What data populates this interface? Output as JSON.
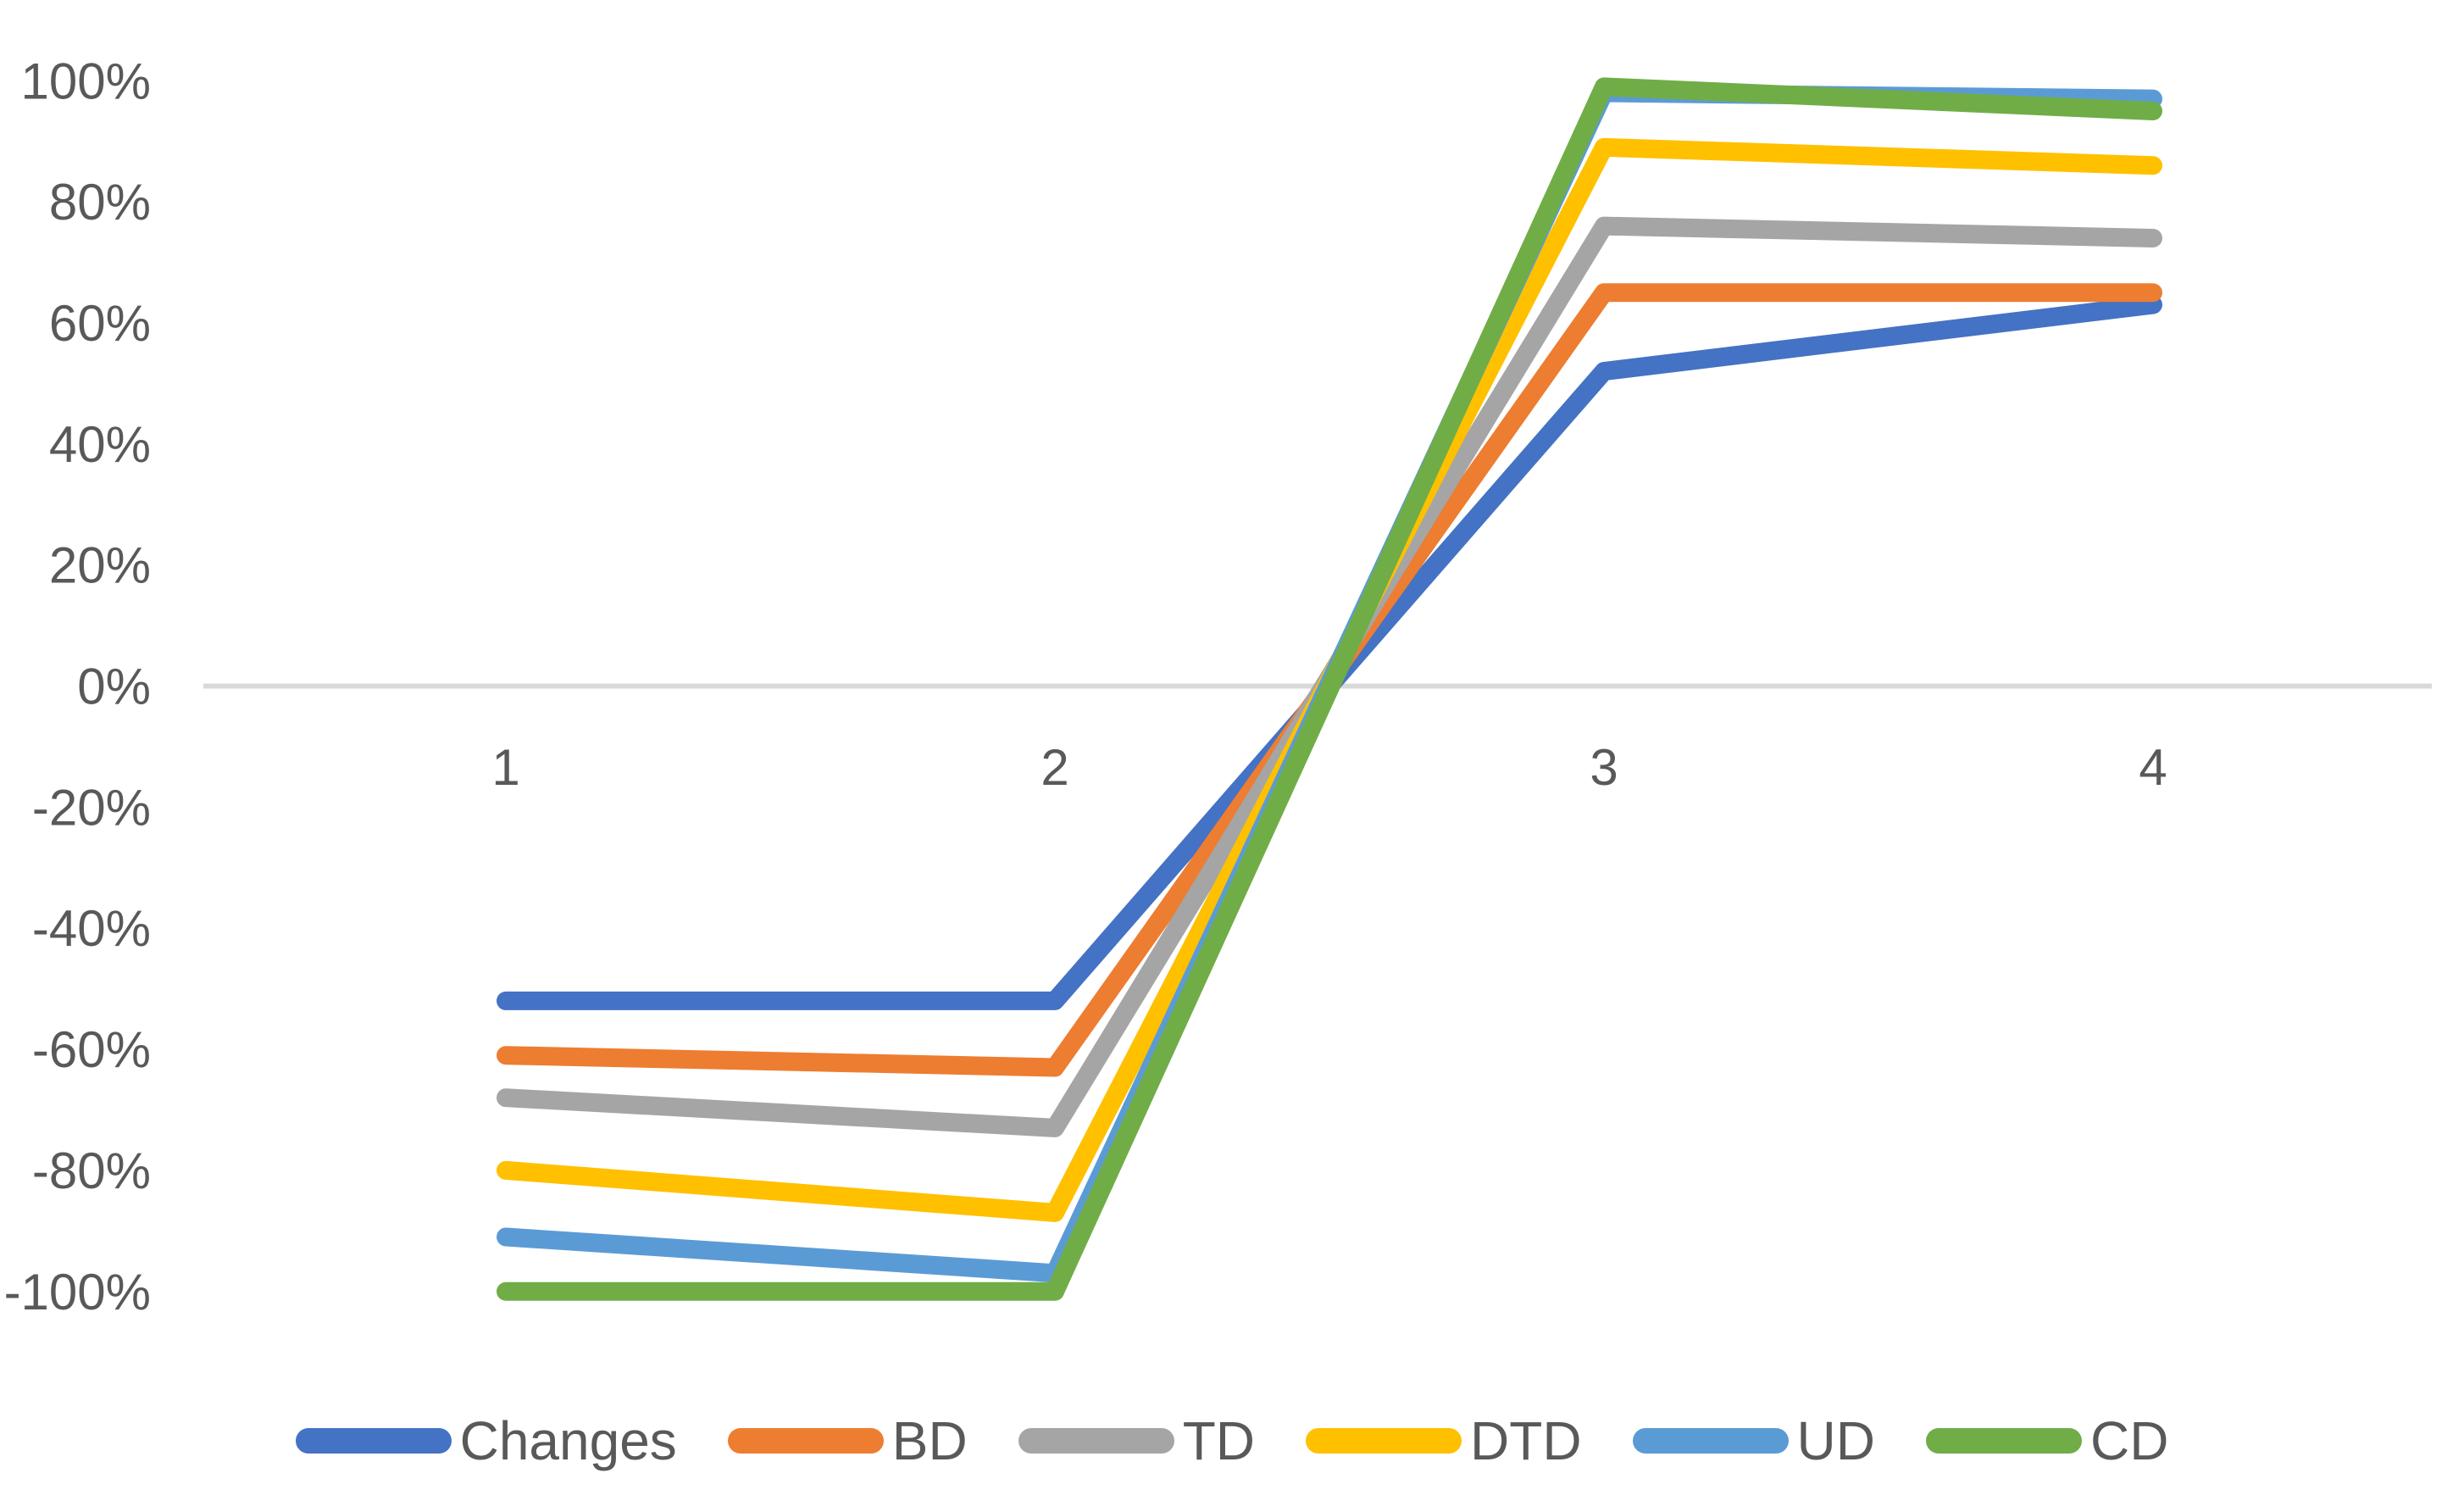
{
  "chart_data": {
    "type": "line",
    "title": "",
    "xlabel": "",
    "ylabel": "",
    "categories": [
      "1",
      "2",
      "3",
      "4"
    ],
    "series": [
      {
        "name": "Changes",
        "color": "#4472C4",
        "values": [
          -52,
          -52,
          52,
          63
        ]
      },
      {
        "name": "BD",
        "color": "#ED7D31",
        "values": [
          -61,
          -63,
          65,
          65
        ]
      },
      {
        "name": "TD",
        "color": "#A5A5A5",
        "values": [
          -68,
          -73,
          76,
          74
        ]
      },
      {
        "name": "DTD",
        "color": "#FFC000",
        "values": [
          -80,
          -87,
          89,
          86
        ]
      },
      {
        "name": "UD",
        "color": "#5B9BD5",
        "values": [
          -91,
          -97,
          98,
          97
        ]
      },
      {
        "name": "CD",
        "color": "#70AD47",
        "values": [
          -100,
          -100,
          99,
          95
        ]
      }
    ],
    "value_unit": "%",
    "ylim": [
      -100,
      100
    ],
    "y_tick_step": 20,
    "y_tick_labels": [
      "100%",
      "80%",
      "60%",
      "40%",
      "20%",
      "0%",
      "-20%",
      "-40%",
      "-60%",
      "-80%",
      "-100%"
    ],
    "x_tick_labels": [
      "1",
      "2",
      "3",
      "4"
    ],
    "grid": "zero-line-only",
    "gridline_color": "#D9D9D9",
    "axis_label_color": "#595959",
    "background_color": "#FFFFFF",
    "legend_position": "bottom"
  }
}
